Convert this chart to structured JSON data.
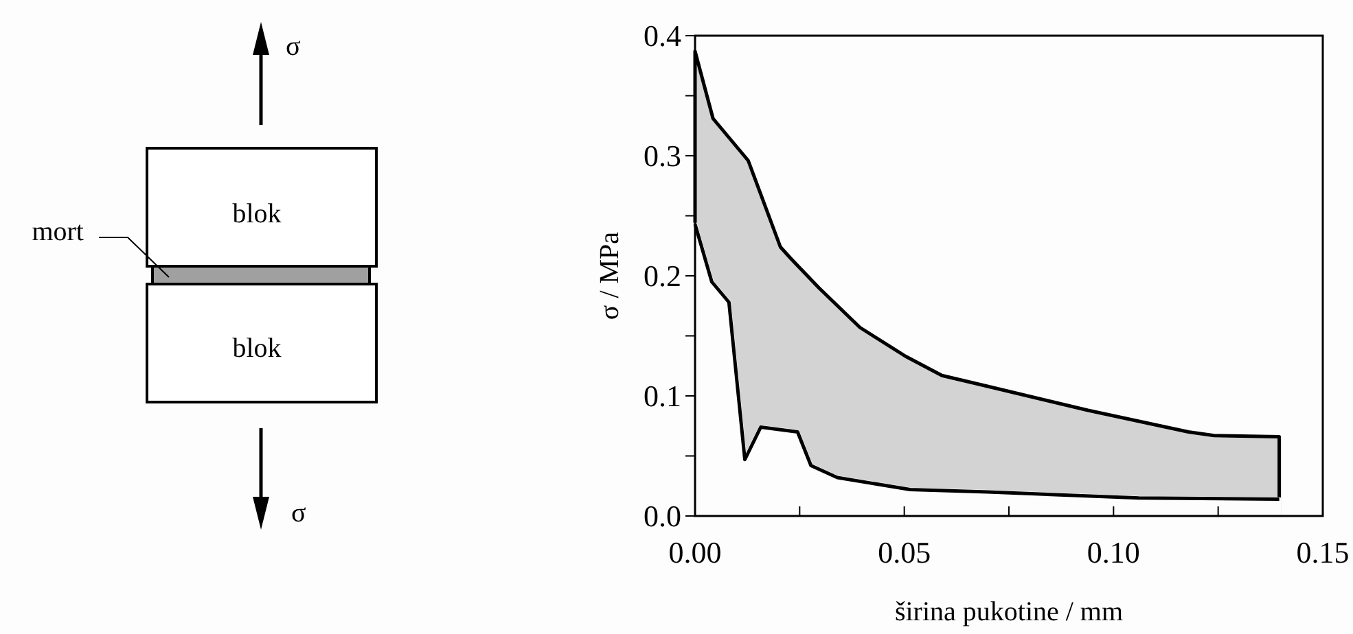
{
  "chart_data": {
    "type": "area",
    "xlabel": "širina pukotine / mm",
    "ylabel": "σ / MPa",
    "xlim": [
      0,
      0.15
    ],
    "ylim": [
      0,
      0.4
    ],
    "xticks": [
      {
        "value": 0,
        "label": "0.00"
      },
      {
        "value": 0.025,
        "label": null
      },
      {
        "value": 0.05,
        "label": "0.05"
      },
      {
        "value": 0.075,
        "label": null
      },
      {
        "value": 0.1,
        "label": "0.10"
      },
      {
        "value": 0.125,
        "label": null
      },
      {
        "value": 0.15,
        "label": "0.15"
      }
    ],
    "yticks": [
      {
        "value": 0,
        "label": "0.0"
      },
      {
        "value": 0.05,
        "label": null
      },
      {
        "value": 0.1,
        "label": "0.1"
      },
      {
        "value": 0.15,
        "label": null
      },
      {
        "value": 0.2,
        "label": "0.2"
      },
      {
        "value": 0.25,
        "label": null
      },
      {
        "value": 0.3,
        "label": "0.3"
      },
      {
        "value": 0.35,
        "label": null
      },
      {
        "value": 0.4,
        "label": "0.4"
      }
    ],
    "grid": false,
    "series": [
      {
        "color": "#d3d3d3",
        "x": [
          0,
          0.0043,
          0.0127,
          0.0204,
          0.023,
          0.0296,
          0.0394,
          0.0503,
          0.059,
          0.0699,
          0.0939,
          0.1179,
          0.124,
          0.1396
        ],
        "values": [
          0.387,
          0.331,
          0.296,
          0.224,
          0.214,
          0.19,
          0.157,
          0.133,
          0.117,
          0.108,
          0.088,
          0.07,
          0.067,
          0.066
        ]
      },
      {
        "color": "#fdfdfd",
        "x": [
          0,
          0.004,
          0.0081,
          0.0119,
          0.0157,
          0.0245,
          0.0277,
          0.034,
          0.0514,
          0.07,
          0.106,
          0.1396
        ],
        "values": [
          0.243,
          0.195,
          0.178,
          0.047,
          0.074,
          0.07,
          0.042,
          0.032,
          0.022,
          0.02,
          0.015,
          0.014
        ]
      }
    ],
    "annotations": [
      "blok",
      "blok",
      "mort",
      "σ",
      "σ"
    ]
  }
}
